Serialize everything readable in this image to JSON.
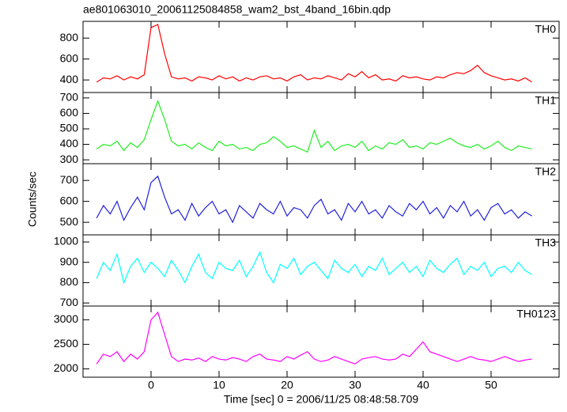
{
  "title": "ae801063010_20061125084858_wam2_bst_4band_16bin.qdp",
  "x_label": "Time [sec] 0 = 2006/11/25 08:48:58.709",
  "y_label": "Counts/sec",
  "chart_data": [
    {
      "type": "line",
      "label": "TH0",
      "color": "#ff0000",
      "x": [
        -8,
        -7,
        -6,
        -5,
        -4,
        -3,
        -2,
        -1,
        0,
        1,
        2,
        3,
        4,
        5,
        6,
        7,
        8,
        9,
        10,
        11,
        12,
        13,
        14,
        15,
        16,
        17,
        18,
        19,
        20,
        21,
        22,
        23,
        24,
        25,
        26,
        27,
        28,
        29,
        30,
        31,
        32,
        33,
        34,
        35,
        36,
        37,
        38,
        39,
        40,
        41,
        42,
        43,
        44,
        45,
        46,
        47,
        48,
        49,
        50,
        51,
        52,
        53,
        54,
        55,
        56
      ],
      "values": [
        380,
        420,
        410,
        440,
        400,
        430,
        410,
        450,
        900,
        930,
        650,
        430,
        410,
        420,
        390,
        430,
        420,
        400,
        440,
        410,
        430,
        390,
        420,
        400,
        430,
        440,
        410,
        420,
        390,
        430,
        450,
        400,
        420,
        410,
        440,
        420,
        400,
        460,
        430,
        480,
        420,
        450,
        400,
        410,
        390,
        440,
        420,
        430,
        410,
        400,
        430,
        420,
        450,
        470,
        460,
        490,
        540,
        470,
        440,
        420,
        400,
        410,
        390,
        420,
        380
      ],
      "xlim": [
        -10,
        60
      ],
      "xticks": [
        0,
        10,
        20,
        30,
        40,
        50
      ],
      "ylim": [
        280,
        960
      ],
      "yticks": [
        400,
        600,
        800
      ]
    },
    {
      "type": "line",
      "label": "TH1",
      "color": "#22ee22",
      "x": [
        -8,
        -7,
        -6,
        -5,
        -4,
        -3,
        -2,
        -1,
        0,
        1,
        2,
        3,
        4,
        5,
        6,
        7,
        8,
        9,
        10,
        11,
        12,
        13,
        14,
        15,
        16,
        17,
        18,
        19,
        20,
        21,
        22,
        23,
        24,
        25,
        26,
        27,
        28,
        29,
        30,
        31,
        32,
        33,
        34,
        35,
        36,
        37,
        38,
        39,
        40,
        41,
        42,
        43,
        44,
        45,
        46,
        47,
        48,
        49,
        50,
        51,
        52,
        53,
        54,
        55,
        56
      ],
      "values": [
        370,
        400,
        390,
        420,
        360,
        410,
        380,
        430,
        560,
        680,
        560,
        420,
        390,
        400,
        370,
        410,
        380,
        360,
        420,
        390,
        400,
        370,
        380,
        360,
        400,
        410,
        450,
        420,
        380,
        390,
        370,
        350,
        490,
        380,
        420,
        360,
        390,
        400,
        380,
        420,
        360,
        390,
        370,
        410,
        400,
        430,
        380,
        390,
        370,
        410,
        400,
        420,
        440,
        410,
        390,
        380,
        400,
        370,
        390,
        420,
        380,
        360,
        390,
        380,
        370
      ],
      "xlim": [
        -10,
        60
      ],
      "xticks": [
        0,
        10,
        20,
        30,
        40,
        50
      ],
      "ylim": [
        275,
        735
      ],
      "yticks": [
        300,
        400,
        500,
        600,
        700
      ]
    },
    {
      "type": "line",
      "label": "TH2",
      "color": "#2222dd",
      "x": [
        -8,
        -7,
        -6,
        -5,
        -4,
        -3,
        -2,
        -1,
        0,
        1,
        2,
        3,
        4,
        5,
        6,
        7,
        8,
        9,
        10,
        11,
        12,
        13,
        14,
        15,
        16,
        17,
        18,
        19,
        20,
        21,
        22,
        23,
        24,
        25,
        26,
        27,
        28,
        29,
        30,
        31,
        32,
        33,
        34,
        35,
        36,
        37,
        38,
        39,
        40,
        41,
        42,
        43,
        44,
        45,
        46,
        47,
        48,
        49,
        50,
        51,
        52,
        53,
        54,
        55,
        56
      ],
      "values": [
        520,
        580,
        540,
        600,
        510,
        570,
        620,
        560,
        690,
        720,
        620,
        540,
        560,
        510,
        590,
        530,
        570,
        600,
        540,
        560,
        500,
        580,
        550,
        520,
        590,
        560,
        540,
        600,
        530,
        570,
        560,
        520,
        580,
        610,
        540,
        560,
        510,
        590,
        550,
        600,
        540,
        560,
        520,
        580,
        550,
        530,
        590,
        560,
        600,
        540,
        570,
        520,
        580,
        550,
        600,
        530,
        560,
        510,
        570,
        590,
        540,
        560,
        520,
        550,
        530
      ],
      "xlim": [
        -10,
        60
      ],
      "xticks": [
        0,
        10,
        20,
        30,
        40,
        50
      ],
      "ylim": [
        440,
        780
      ],
      "yticks": [
        500,
        600,
        700
      ]
    },
    {
      "type": "line",
      "label": "TH3",
      "color": "#00ffff",
      "x": [
        -8,
        -7,
        -6,
        -5,
        -4,
        -3,
        -2,
        -1,
        0,
        1,
        2,
        3,
        4,
        5,
        6,
        7,
        8,
        9,
        10,
        11,
        12,
        13,
        14,
        15,
        16,
        17,
        18,
        19,
        20,
        21,
        22,
        23,
        24,
        25,
        26,
        27,
        28,
        29,
        30,
        31,
        32,
        33,
        34,
        35,
        36,
        37,
        38,
        39,
        40,
        41,
        42,
        43,
        44,
        45,
        46,
        47,
        48,
        49,
        50,
        51,
        52,
        53,
        54,
        55,
        56
      ],
      "values": [
        820,
        900,
        860,
        940,
        800,
        880,
        920,
        850,
        900,
        870,
        830,
        910,
        860,
        800,
        880,
        940,
        850,
        820,
        900,
        870,
        860,
        910,
        830,
        880,
        950,
        850,
        800,
        890,
        870,
        920,
        840,
        880,
        900,
        860,
        820,
        910,
        870,
        850,
        890,
        830,
        880,
        860,
        920,
        840,
        870,
        900,
        850,
        880,
        830,
        910,
        870,
        850,
        890,
        920,
        840,
        880,
        860,
        900,
        830,
        870,
        880,
        850,
        900,
        860,
        840
      ],
      "xlim": [
        -10,
        60
      ],
      "xticks": [
        0,
        10,
        20,
        30,
        40,
        50
      ],
      "ylim": [
        685,
        1035
      ],
      "yticks": [
        700,
        800,
        900,
        1000
      ]
    },
    {
      "type": "line",
      "label": "TH0123",
      "color": "#ff00ff",
      "x": [
        -8,
        -7,
        -6,
        -5,
        -4,
        -3,
        -2,
        -1,
        0,
        1,
        2,
        3,
        4,
        5,
        6,
        7,
        8,
        9,
        10,
        11,
        12,
        13,
        14,
        15,
        16,
        17,
        18,
        19,
        20,
        21,
        22,
        23,
        24,
        25,
        26,
        27,
        28,
        29,
        30,
        31,
        32,
        33,
        34,
        35,
        36,
        37,
        38,
        39,
        40,
        41,
        42,
        43,
        44,
        45,
        46,
        47,
        48,
        49,
        50,
        51,
        52,
        53,
        54,
        55,
        56
      ],
      "values": [
        2100,
        2300,
        2250,
        2350,
        2150,
        2300,
        2200,
        2350,
        3000,
        3150,
        2700,
        2250,
        2150,
        2200,
        2180,
        2220,
        2150,
        2250,
        2200,
        2180,
        2230,
        2200,
        2150,
        2250,
        2300,
        2200,
        2180,
        2150,
        2250,
        2200,
        2280,
        2350,
        2200,
        2150,
        2180,
        2250,
        2200,
        2150,
        2100,
        2200,
        2230,
        2250,
        2200,
        2180,
        2200,
        2300,
        2250,
        2400,
        2550,
        2350,
        2300,
        2250,
        2200,
        2150,
        2200,
        2250,
        2200,
        2180,
        2150,
        2200,
        2250,
        2200,
        2150,
        2180,
        2200
      ],
      "xlim": [
        -10,
        60
      ],
      "xticks": [
        0,
        10,
        20,
        30,
        40,
        50
      ],
      "ylim": [
        1830,
        3280
      ],
      "yticks": [
        2000,
        2500,
        3000
      ]
    }
  ]
}
